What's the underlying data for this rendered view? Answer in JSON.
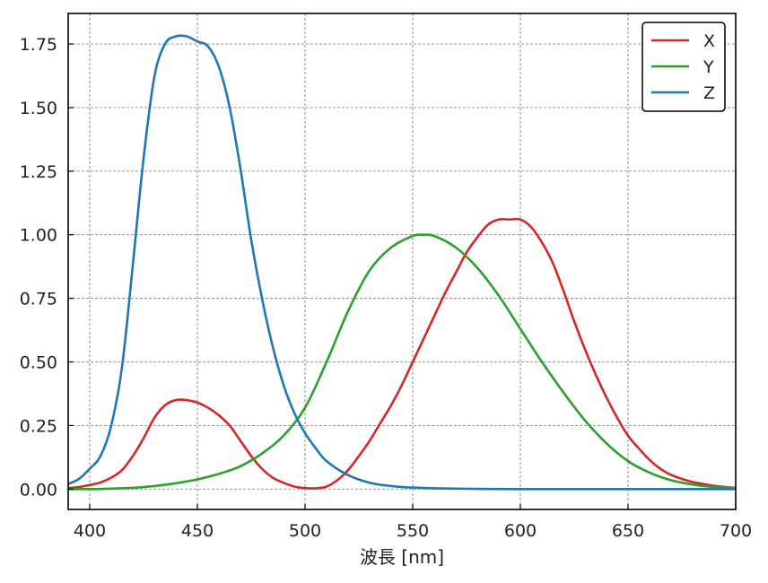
{
  "chart_data": {
    "type": "line",
    "title": "",
    "xlabel": "波長 [nm]",
    "ylabel": "",
    "xlim": [
      390,
      700
    ],
    "ylim": [
      -0.08,
      1.87
    ],
    "x_ticks": [
      400,
      450,
      500,
      550,
      600,
      650,
      700
    ],
    "y_ticks": [
      0.0,
      0.25,
      0.5,
      0.75,
      1.0,
      1.25,
      1.5,
      1.75
    ],
    "x_tick_labels": [
      "400",
      "450",
      "500",
      "550",
      "600",
      "650",
      "700"
    ],
    "y_tick_labels": [
      "0.00",
      "0.25",
      "0.50",
      "0.75",
      "1.00",
      "1.25",
      "1.50",
      "1.75"
    ],
    "grid": true,
    "grid_style": "dashed",
    "legend_position": "top-right",
    "series": [
      {
        "name": "X",
        "color": "#d62728",
        "x": [
          390,
          395,
          400,
          405,
          410,
          415,
          420,
          425,
          430,
          435,
          440,
          445,
          450,
          455,
          460,
          465,
          470,
          475,
          480,
          485,
          490,
          495,
          500,
          505,
          510,
          515,
          520,
          525,
          530,
          535,
          540,
          545,
          550,
          555,
          560,
          565,
          570,
          575,
          580,
          585,
          590,
          595,
          600,
          605,
          610,
          615,
          620,
          625,
          630,
          635,
          640,
          645,
          650,
          655,
          660,
          665,
          670,
          675,
          680,
          685,
          690,
          695,
          700
        ],
        "values": [
          0.004,
          0.008,
          0.016,
          0.026,
          0.045,
          0.075,
          0.13,
          0.2,
          0.28,
          0.33,
          0.35,
          0.35,
          0.34,
          0.32,
          0.29,
          0.25,
          0.19,
          0.13,
          0.08,
          0.045,
          0.025,
          0.01,
          0.004,
          0.003,
          0.01,
          0.035,
          0.075,
          0.13,
          0.19,
          0.26,
          0.33,
          0.41,
          0.5,
          0.59,
          0.68,
          0.77,
          0.85,
          0.93,
          0.99,
          1.04,
          1.06,
          1.06,
          1.06,
          1.03,
          0.97,
          0.89,
          0.78,
          0.66,
          0.55,
          0.45,
          0.36,
          0.28,
          0.21,
          0.16,
          0.115,
          0.08,
          0.056,
          0.04,
          0.028,
          0.02,
          0.013,
          0.008,
          0.005
        ]
      },
      {
        "name": "Y",
        "color": "#2ca02c",
        "x": [
          390,
          400,
          410,
          420,
          430,
          440,
          450,
          460,
          470,
          480,
          490,
          500,
          510,
          520,
          530,
          540,
          550,
          555,
          560,
          570,
          580,
          590,
          600,
          610,
          620,
          630,
          640,
          650,
          660,
          670,
          680,
          690,
          700
        ],
        "values": [
          0.0,
          0.0,
          0.002,
          0.005,
          0.012,
          0.023,
          0.038,
          0.06,
          0.09,
          0.14,
          0.21,
          0.32,
          0.5,
          0.7,
          0.86,
          0.95,
          0.995,
          1.0,
          0.995,
          0.95,
          0.87,
          0.76,
          0.63,
          0.5,
          0.38,
          0.27,
          0.18,
          0.11,
          0.065,
          0.035,
          0.018,
          0.008,
          0.004
        ]
      },
      {
        "name": "Z",
        "color": "#1f77b4",
        "x": [
          390,
          395,
          400,
          405,
          410,
          415,
          420,
          425,
          430,
          435,
          440,
          445,
          450,
          455,
          460,
          465,
          470,
          475,
          480,
          485,
          490,
          495,
          500,
          505,
          510,
          520,
          530,
          540,
          550,
          560,
          580,
          600,
          650,
          700
        ],
        "values": [
          0.02,
          0.04,
          0.08,
          0.13,
          0.25,
          0.48,
          0.88,
          1.3,
          1.62,
          1.75,
          1.78,
          1.78,
          1.76,
          1.74,
          1.66,
          1.5,
          1.26,
          0.98,
          0.75,
          0.56,
          0.41,
          0.3,
          0.22,
          0.16,
          0.11,
          0.055,
          0.025,
          0.012,
          0.006,
          0.003,
          0.001,
          0.0,
          0.0,
          0.0
        ]
      }
    ]
  }
}
